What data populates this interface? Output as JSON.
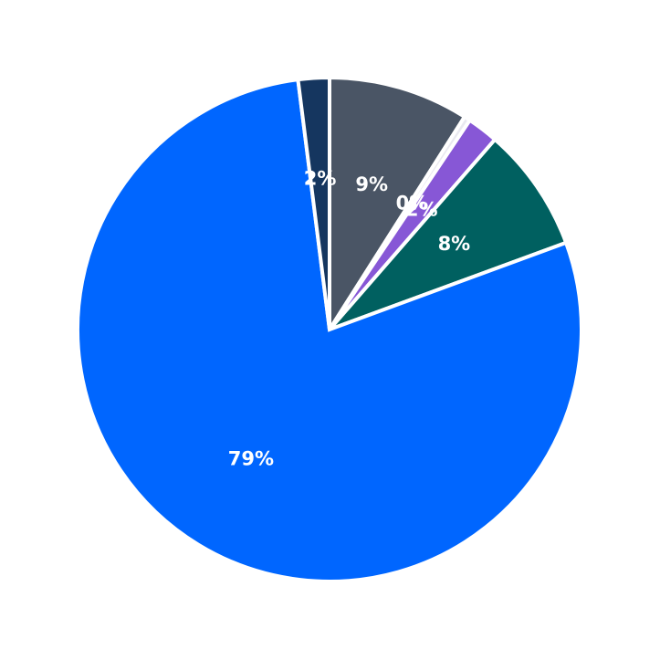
{
  "chart_data": {
    "type": "pie",
    "start": "top",
    "direction": "clockwise",
    "legend": "none",
    "slices": [
      {
        "value": 9.0,
        "label": "9%",
        "color": "#4a5565"
      },
      {
        "value": 0.4,
        "label": "0%",
        "color": "#e9e9f0"
      },
      {
        "value": 2.0,
        "label": "2%",
        "color": "#8757d6"
      },
      {
        "value": 8.0,
        "label": "8%",
        "color": "#006060"
      },
      {
        "value": 78.6,
        "label": "79%",
        "color": "#0066ff"
      },
      {
        "value": 2.0,
        "label": "2%",
        "color": "#15365f"
      }
    ]
  }
}
